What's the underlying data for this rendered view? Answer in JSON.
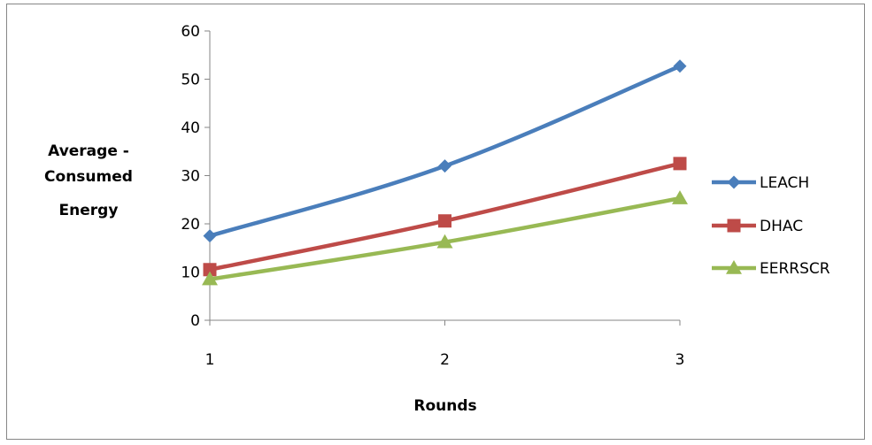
{
  "chart_data": {
    "type": "line",
    "title": "",
    "xlabel": "Rounds",
    "ylabel_lines": [
      "Average -",
      "Consumed",
      "Energy"
    ],
    "categories": [
      "1",
      "2",
      "3"
    ],
    "ylim": [
      0,
      60
    ],
    "yticks": [
      "0",
      "10",
      "20",
      "30",
      "40",
      "50",
      "60"
    ],
    "grid": false,
    "legend_position": "right",
    "series": [
      {
        "name": "LEACH",
        "values": [
          17.5,
          32,
          52.7
        ],
        "color": "#4a7ebb",
        "marker": "diamond"
      },
      {
        "name": "DHAC",
        "values": [
          10.5,
          20.6,
          32.5
        ],
        "color": "#be4b48",
        "marker": "square"
      },
      {
        "name": "EERRSCR",
        "values": [
          8.5,
          16.2,
          25.3
        ],
        "color": "#98b954",
        "marker": "triangle"
      }
    ]
  }
}
